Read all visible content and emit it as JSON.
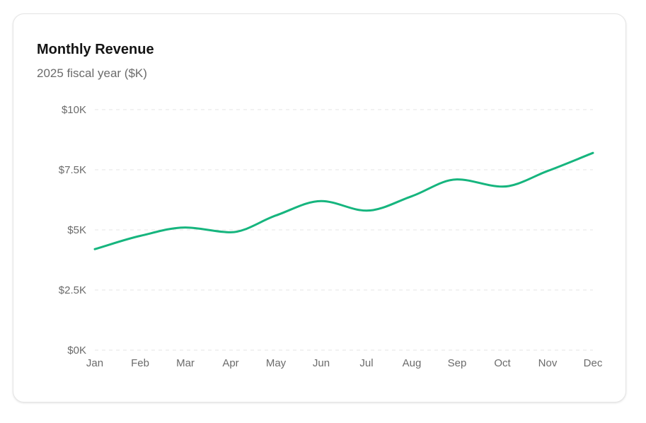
{
  "card": {
    "title": "Monthly Revenue",
    "subtitle": "2025 fiscal year ($K)"
  },
  "chart_data": {
    "type": "line",
    "title": "Monthly Revenue",
    "subtitle": "2025 fiscal year ($K)",
    "xlabel": "",
    "ylabel": "",
    "categories": [
      "Jan",
      "Feb",
      "Mar",
      "Apr",
      "May",
      "Jun",
      "Jul",
      "Aug",
      "Sep",
      "Oct",
      "Nov",
      "Dec"
    ],
    "series": [
      {
        "values": [
          4200,
          4750,
          5100,
          4900,
          5600,
          6200,
          5800,
          6400,
          7100,
          6800,
          7450,
          8200
        ],
        "color": "#16b57e"
      }
    ],
    "ylim": [
      0,
      10000
    ],
    "yticks": [
      0,
      2500,
      5000,
      7500,
      10000
    ],
    "ytick_labels": [
      "$0K",
      "$2.5K",
      "$5K",
      "$7.5K",
      "$10K"
    ],
    "grid": true,
    "grid_style": "dashed-horizontal",
    "legend": "none",
    "curve": "smooth"
  }
}
